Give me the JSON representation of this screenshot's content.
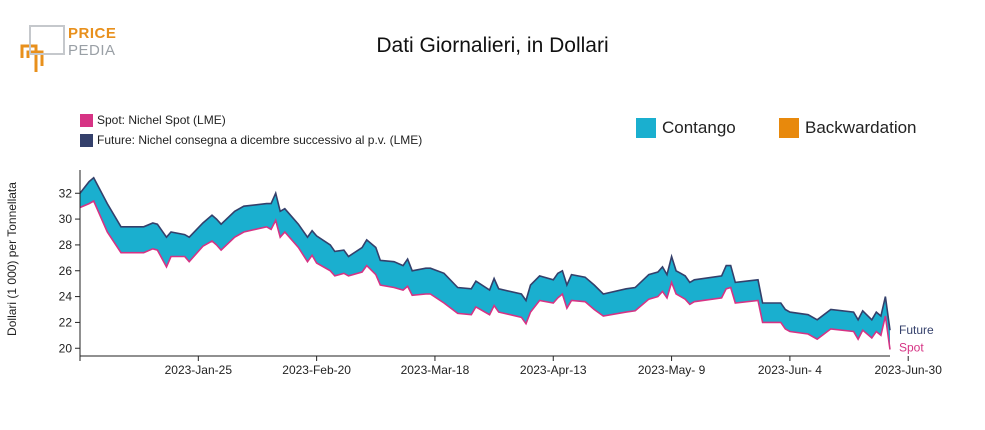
{
  "logo": {
    "word_top": "PRICE",
    "word_bottom": "PEDIA",
    "colors": {
      "orange": "#e8901c",
      "grey": "#9aa0a6"
    }
  },
  "legend": {
    "spot": {
      "label": "Spot: Nichel Spot (LME)",
      "color": "#d63384"
    },
    "future": {
      "label": "Future: Nichel consegna a dicembre successivo al p.v. (LME)",
      "color": "#34406b"
    },
    "contango": {
      "label": "Contango",
      "color": "#1aafcf"
    },
    "backwardation": {
      "label": "Backwardation",
      "color": "#e8890c"
    }
  },
  "chart_data": {
    "type": "area",
    "title": "Dati Giornalieri, in Dollari",
    "ylabel": "Dollari (1 000) per Tonnellata",
    "xlabel": "",
    "ylim": [
      19.4,
      33.8
    ],
    "yticks": [
      20,
      22,
      24,
      26,
      28,
      30,
      32
    ],
    "xticks": [
      "2023-Jan-25",
      "2023-Feb-20",
      "2023-Mar-18",
      "2023-Apr-13",
      "2023-May- 9",
      "2023-Jun- 4",
      "2023-Jun-30"
    ],
    "x_start": "2023-01-03",
    "x_end": "2023-06-30",
    "series": [
      {
        "name": "Future",
        "points": [
          [
            "2023-01-03",
            32.0
          ],
          [
            "2023-01-05",
            32.9
          ],
          [
            "2023-01-06",
            33.2
          ],
          [
            "2023-01-09",
            31.2
          ],
          [
            "2023-01-12",
            29.4
          ],
          [
            "2023-01-17",
            29.4
          ],
          [
            "2023-01-19",
            29.7
          ],
          [
            "2023-01-20",
            29.6
          ],
          [
            "2023-01-22",
            28.6
          ],
          [
            "2023-01-23",
            29.0
          ],
          [
            "2023-01-26",
            28.8
          ],
          [
            "2023-01-27",
            28.6
          ],
          [
            "2023-01-30",
            29.7
          ],
          [
            "2023-02-01",
            30.3
          ],
          [
            "2023-02-02",
            30.0
          ],
          [
            "2023-02-03",
            29.6
          ],
          [
            "2023-02-06",
            30.6
          ],
          [
            "2023-02-08",
            31.0
          ],
          [
            "2023-02-13",
            31.2
          ],
          [
            "2023-02-14",
            31.2
          ],
          [
            "2023-02-15",
            32.0
          ],
          [
            "2023-02-16",
            30.6
          ],
          [
            "2023-02-17",
            30.8
          ],
          [
            "2023-02-20",
            29.6
          ],
          [
            "2023-02-22",
            28.6
          ],
          [
            "2023-02-23",
            29.1
          ],
          [
            "2023-02-24",
            28.7
          ],
          [
            "2023-02-27",
            28.0
          ],
          [
            "2023-02-28",
            27.5
          ],
          [
            "2023-03-02",
            27.6
          ],
          [
            "2023-03-03",
            27.1
          ],
          [
            "2023-03-06",
            27.8
          ],
          [
            "2023-03-07",
            28.4
          ],
          [
            "2023-03-09",
            27.8
          ],
          [
            "2023-03-10",
            26.8
          ],
          [
            "2023-03-13",
            26.7
          ],
          [
            "2023-03-15",
            26.4
          ],
          [
            "2023-03-16",
            26.9
          ],
          [
            "2023-03-17",
            26.0
          ],
          [
            "2023-03-20",
            26.2
          ],
          [
            "2023-03-21",
            26.2
          ],
          [
            "2023-03-24",
            25.8
          ],
          [
            "2023-03-27",
            24.7
          ],
          [
            "2023-03-30",
            24.6
          ],
          [
            "2023-03-31",
            25.2
          ],
          [
            "2023-04-03",
            24.5
          ],
          [
            "2023-04-04",
            25.4
          ],
          [
            "2023-04-05",
            24.6
          ],
          [
            "2023-04-10",
            24.2
          ],
          [
            "2023-04-11",
            23.7
          ],
          [
            "2023-04-12",
            24.9
          ],
          [
            "2023-04-14",
            25.6
          ],
          [
            "2023-04-17",
            25.3
          ],
          [
            "2023-04-18",
            25.8
          ],
          [
            "2023-04-19",
            26.0
          ],
          [
            "2023-04-20",
            24.9
          ],
          [
            "2023-04-21",
            25.7
          ],
          [
            "2023-04-24",
            25.5
          ],
          [
            "2023-04-26",
            24.9
          ],
          [
            "2023-04-28",
            24.2
          ],
          [
            "2023-05-03",
            24.6
          ],
          [
            "2023-05-05",
            24.7
          ],
          [
            "2023-05-08",
            25.7
          ],
          [
            "2023-05-10",
            25.9
          ],
          [
            "2023-05-11",
            26.3
          ],
          [
            "2023-05-12",
            25.7
          ],
          [
            "2023-05-13",
            27.1
          ],
          [
            "2023-05-14",
            26.0
          ],
          [
            "2023-05-15",
            25.8
          ],
          [
            "2023-05-16",
            25.6
          ],
          [
            "2023-05-17",
            25.1
          ],
          [
            "2023-05-18",
            25.3
          ],
          [
            "2023-05-24",
            25.6
          ],
          [
            "2023-05-25",
            26.4
          ],
          [
            "2023-05-26",
            26.4
          ],
          [
            "2023-05-27",
            25.1
          ],
          [
            "2023-06-01",
            25.3
          ],
          [
            "2023-06-02",
            23.5
          ],
          [
            "2023-06-06",
            23.5
          ],
          [
            "2023-06-07",
            23.0
          ],
          [
            "2023-06-08",
            22.8
          ],
          [
            "2023-06-12",
            22.6
          ],
          [
            "2023-06-14",
            22.2
          ],
          [
            "2023-06-17",
            23.0
          ],
          [
            "2023-06-22",
            22.8
          ],
          [
            "2023-06-23",
            22.2
          ],
          [
            "2023-06-24",
            22.9
          ],
          [
            "2023-06-26",
            22.2
          ],
          [
            "2023-06-27",
            22.8
          ],
          [
            "2023-06-28",
            22.5
          ],
          [
            "2023-06-29",
            24.0
          ],
          [
            "2023-06-30",
            21.4
          ]
        ]
      },
      {
        "name": "Spot",
        "points": [
          [
            "2023-01-03",
            30.9
          ],
          [
            "2023-01-05",
            31.2
          ],
          [
            "2023-01-06",
            31.4
          ],
          [
            "2023-01-09",
            29.0
          ],
          [
            "2023-01-12",
            27.4
          ],
          [
            "2023-01-17",
            27.4
          ],
          [
            "2023-01-19",
            27.7
          ],
          [
            "2023-01-20",
            27.6
          ],
          [
            "2023-01-22",
            26.3
          ],
          [
            "2023-01-23",
            27.1
          ],
          [
            "2023-01-26",
            27.1
          ],
          [
            "2023-01-27",
            26.7
          ],
          [
            "2023-01-30",
            27.9
          ],
          [
            "2023-02-01",
            28.3
          ],
          [
            "2023-02-02",
            28.0
          ],
          [
            "2023-02-03",
            27.6
          ],
          [
            "2023-02-06",
            28.6
          ],
          [
            "2023-02-08",
            29.0
          ],
          [
            "2023-02-13",
            29.4
          ],
          [
            "2023-02-14",
            29.2
          ],
          [
            "2023-02-15",
            29.9
          ],
          [
            "2023-02-16",
            28.6
          ],
          [
            "2023-02-17",
            29.0
          ],
          [
            "2023-02-20",
            27.8
          ],
          [
            "2023-02-22",
            26.7
          ],
          [
            "2023-02-23",
            27.2
          ],
          [
            "2023-02-24",
            26.6
          ],
          [
            "2023-02-27",
            26.0
          ],
          [
            "2023-02-28",
            25.6
          ],
          [
            "2023-03-02",
            25.8
          ],
          [
            "2023-03-03",
            25.6
          ],
          [
            "2023-03-06",
            25.9
          ],
          [
            "2023-03-07",
            26.4
          ],
          [
            "2023-03-09",
            25.7
          ],
          [
            "2023-03-10",
            24.9
          ],
          [
            "2023-03-13",
            24.7
          ],
          [
            "2023-03-15",
            24.5
          ],
          [
            "2023-03-16",
            24.8
          ],
          [
            "2023-03-17",
            24.1
          ],
          [
            "2023-03-20",
            24.2
          ],
          [
            "2023-03-21",
            24.2
          ],
          [
            "2023-03-24",
            23.5
          ],
          [
            "2023-03-27",
            22.7
          ],
          [
            "2023-03-30",
            22.6
          ],
          [
            "2023-03-31",
            23.2
          ],
          [
            "2023-04-03",
            22.6
          ],
          [
            "2023-04-04",
            23.3
          ],
          [
            "2023-04-05",
            22.8
          ],
          [
            "2023-04-10",
            22.4
          ],
          [
            "2023-04-11",
            21.9
          ],
          [
            "2023-04-12",
            22.8
          ],
          [
            "2023-04-14",
            23.7
          ],
          [
            "2023-04-17",
            23.5
          ],
          [
            "2023-04-18",
            23.9
          ],
          [
            "2023-04-19",
            24.2
          ],
          [
            "2023-04-20",
            23.1
          ],
          [
            "2023-04-21",
            23.7
          ],
          [
            "2023-04-24",
            23.6
          ],
          [
            "2023-04-26",
            23.0
          ],
          [
            "2023-04-28",
            22.5
          ],
          [
            "2023-05-03",
            22.8
          ],
          [
            "2023-05-05",
            22.9
          ],
          [
            "2023-05-08",
            23.8
          ],
          [
            "2023-05-10",
            24.0
          ],
          [
            "2023-05-11",
            24.4
          ],
          [
            "2023-05-12",
            23.9
          ],
          [
            "2023-05-13",
            25.1
          ],
          [
            "2023-05-14",
            24.2
          ],
          [
            "2023-05-15",
            24.0
          ],
          [
            "2023-05-16",
            23.8
          ],
          [
            "2023-05-17",
            23.4
          ],
          [
            "2023-05-18",
            23.6
          ],
          [
            "2023-05-24",
            23.9
          ],
          [
            "2023-05-25",
            24.6
          ],
          [
            "2023-05-26",
            24.7
          ],
          [
            "2023-05-27",
            23.5
          ],
          [
            "2023-06-01",
            23.7
          ],
          [
            "2023-06-02",
            22.0
          ],
          [
            "2023-06-06",
            22.0
          ],
          [
            "2023-06-07",
            21.5
          ],
          [
            "2023-06-08",
            21.3
          ],
          [
            "2023-06-12",
            21.1
          ],
          [
            "2023-06-14",
            20.7
          ],
          [
            "2023-06-17",
            21.5
          ],
          [
            "2023-06-22",
            21.3
          ],
          [
            "2023-06-23",
            20.7
          ],
          [
            "2023-06-24",
            21.4
          ],
          [
            "2023-06-26",
            20.8
          ],
          [
            "2023-06-27",
            21.3
          ],
          [
            "2023-06-28",
            21.0
          ],
          [
            "2023-06-29",
            22.5
          ],
          [
            "2023-06-30",
            19.9
          ]
        ]
      }
    ],
    "end_labels": {
      "future": "Future",
      "spot": "Spot"
    },
    "fill_between": {
      "future_above_spot": "Contango",
      "spot_above_future": "Backwardation"
    }
  }
}
